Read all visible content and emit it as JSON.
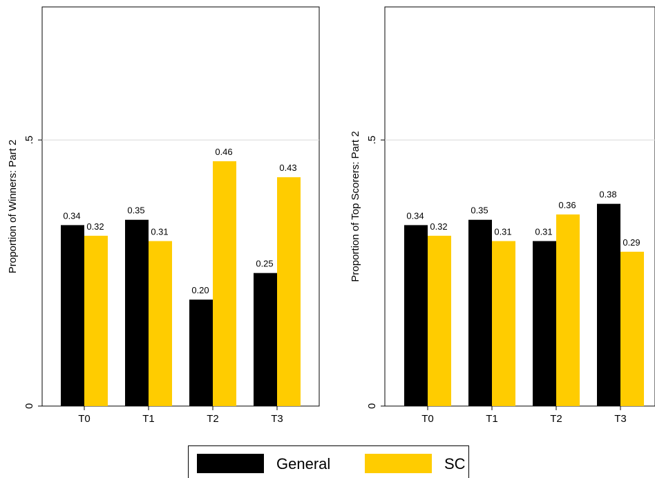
{
  "colors": {
    "general": "#000000",
    "sc": "#FFCC00",
    "grid": "#d9d9d9",
    "axis": "#000000"
  },
  "legend": {
    "position": "bottom",
    "general_label": "General",
    "sc_label": "SC"
  },
  "chart_data": [
    {
      "type": "bar",
      "title": "",
      "xlabel": "",
      "ylabel": "Proportion of Winners: Part 2",
      "ylim": [
        0,
        0.75
      ],
      "yticks": [
        {
          "value": 0,
          "label": "0"
        },
        {
          "value": 0.5,
          "label": ".5"
        }
      ],
      "grid": true,
      "categories": [
        "T0",
        "T1",
        "T2",
        "T3"
      ],
      "series": [
        {
          "name": "General",
          "values": [
            0.34,
            0.35,
            0.2,
            0.25
          ],
          "labels": [
            "0.34",
            "0.35",
            "0.20",
            "0.25"
          ]
        },
        {
          "name": "SC",
          "values": [
            0.32,
            0.31,
            0.46,
            0.43
          ],
          "labels": [
            "0.32",
            "0.31",
            "0.46",
            "0.43"
          ]
        }
      ]
    },
    {
      "type": "bar",
      "title": "",
      "xlabel": "",
      "ylabel": "Proportion of Top Scorers: Part 2",
      "ylim": [
        0,
        0.75
      ],
      "yticks": [
        {
          "value": 0,
          "label": "0"
        },
        {
          "value": 0.5,
          "label": ".5"
        }
      ],
      "grid": true,
      "categories": [
        "T0",
        "T1",
        "T2",
        "T3"
      ],
      "series": [
        {
          "name": "General",
          "values": [
            0.34,
            0.35,
            0.31,
            0.38
          ],
          "labels": [
            "0.34",
            "0.35",
            "0.31",
            "0.38"
          ]
        },
        {
          "name": "SC",
          "values": [
            0.32,
            0.31,
            0.36,
            0.29
          ],
          "labels": [
            "0.32",
            "0.31",
            "0.36",
            "0.29"
          ]
        }
      ]
    }
  ]
}
